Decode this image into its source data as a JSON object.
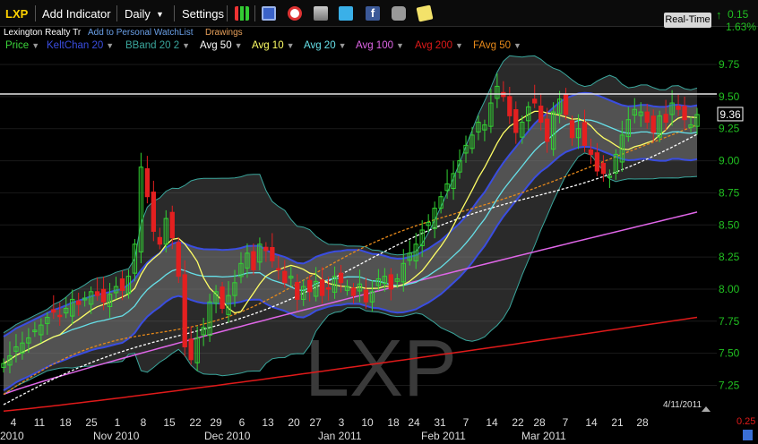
{
  "toolbar": {
    "symbol": "LXP",
    "add_indicator": "Add Indicator",
    "period": "Daily",
    "settings": "Settings",
    "icons": [
      "bar-chart-icon",
      "save-icon",
      "alarm-icon",
      "print-icon",
      "twitter-icon",
      "facebook-icon",
      "camera-icon",
      "note-icon"
    ]
  },
  "subline": {
    "company": "Lexington Realty Tr",
    "watchlist": "Add to Personal WatchList",
    "drawings": "Drawings"
  },
  "indicators": [
    {
      "label": "Price",
      "color": "#3ad43a"
    },
    {
      "label": "KeltChan 20",
      "color": "#3a4de0"
    },
    {
      "label": "BBand 20 2",
      "color": "#3aa69c"
    },
    {
      "label": "Avg 50",
      "color": "#ffffff"
    },
    {
      "label": "Avg 10",
      "color": "#ffff66"
    },
    {
      "label": "Avg 20",
      "color": "#66e0e8"
    },
    {
      "label": "Avg 100",
      "color": "#e066e8"
    },
    {
      "label": "Avg 200",
      "color": "#e01a1a"
    },
    {
      "label": "FAvg 50",
      "color": "#e88a1a"
    }
  ],
  "header_right": {
    "realtime": "Real-Time",
    "change": "0.15",
    "change_pct": "1.63%"
  },
  "chart_data": {
    "type": "candlestick",
    "watermark": "LXP",
    "y_ticks": [
      "9.75",
      "9.50",
      "9.25",
      "9.00",
      "8.75",
      "8.50",
      "8.25",
      "8.00",
      "7.75",
      "7.50",
      "7.25"
    ],
    "ylim": [
      7.1,
      9.82
    ],
    "last_price": "9.36",
    "horizontal_line": 9.52,
    "bottom_right_value": "0.25",
    "x_ticks": [
      "4",
      "11",
      "18",
      "25",
      "1",
      "8",
      "15",
      "22",
      "29",
      "6",
      "13",
      "20",
      "27",
      "3",
      "10",
      "18",
      "24",
      "31",
      "7",
      "14",
      "22",
      "28",
      "7",
      "14",
      "21",
      "28"
    ],
    "months": [
      "2010",
      "Nov 2010",
      "Dec 2010",
      "Jan 2011",
      "Feb 2011",
      "Mar 2011"
    ],
    "last_date": "4/11/2011",
    "closes": [
      7.42,
      7.48,
      7.55,
      7.58,
      7.62,
      7.68,
      7.72,
      7.78,
      7.82,
      7.79,
      7.85,
      7.92,
      7.88,
      7.93,
      7.98,
      7.95,
      7.9,
      7.96,
      8.02,
      7.99,
      8.1,
      8.35,
      8.95,
      8.72,
      8.45,
      8.35,
      8.55,
      8.4,
      8.1,
      7.55,
      7.45,
      7.62,
      7.7,
      7.9,
      7.98,
      7.85,
      7.95,
      8.05,
      8.2,
      8.28,
      8.15,
      8.35,
      8.3,
      8.22,
      8.15,
      8.05,
      8.1,
      7.92,
      8.02,
      7.98,
      8.06,
      7.95,
      8.0,
      8.1,
      8.05,
      8.02,
      7.95,
      8.04,
      7.9,
      7.98,
      8.08,
      8.1,
      8.0,
      8.08,
      8.2,
      8.28,
      8.35,
      8.46,
      8.52,
      8.63,
      8.72,
      8.82,
      8.9,
      9.0,
      9.12,
      9.2,
      9.3,
      9.28,
      9.45,
      9.58,
      9.5,
      9.35,
      9.22,
      9.3,
      9.42,
      9.45,
      9.3,
      9.15,
      9.38,
      9.48,
      9.36,
      9.18,
      9.25,
      9.12,
      9.05,
      8.92,
      8.9,
      8.88,
      9.05,
      9.2,
      9.32,
      9.4,
      9.38,
      9.3,
      9.22,
      9.35,
      9.3,
      9.45,
      9.4,
      9.32,
      9.28,
      9.36
    ]
  }
}
